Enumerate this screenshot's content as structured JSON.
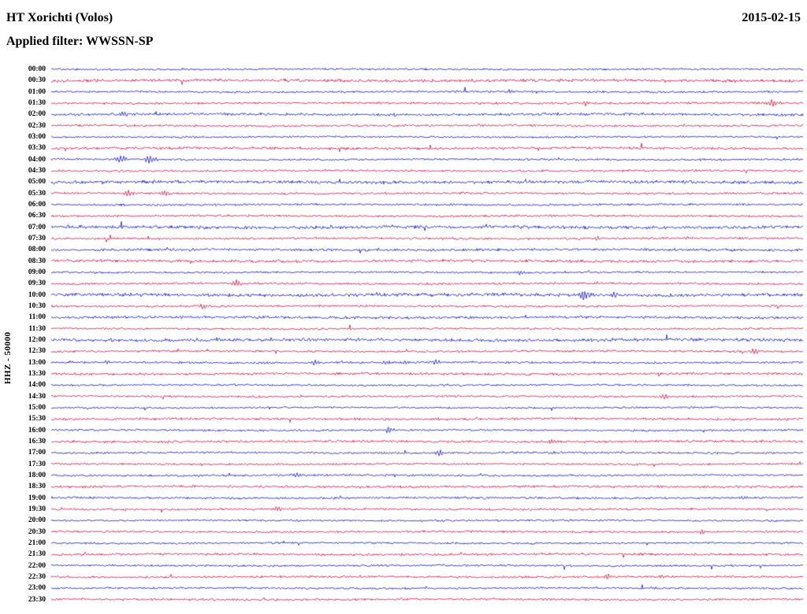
{
  "header": {
    "title": "HT Xorichti (Volos)",
    "date": "2015-02-15",
    "filter": "Applied filter: WWSSN-SP"
  },
  "chart_data": {
    "type": "line",
    "subtype": "helicorder_day_plot",
    "title": "HT Xorichti (Volos)",
    "date": "2015-02-15",
    "filter": "WWSSN-SP",
    "ylabel": "HHZ - 50000",
    "channel": "HHZ",
    "amplitude_scale": 50000,
    "row_duration_minutes": 30,
    "rows_start": "00:00",
    "rows_end": "23:30",
    "grid": false,
    "legend": false,
    "trace_colors": {
      "blue": "#1515c8",
      "red": "#d31245"
    },
    "row_event_format": "[position_fraction_of_row, peak_amplitude_px, burst_width_px]",
    "rows": [
      {
        "time": "00:00",
        "color": "blue",
        "noise": 0.85,
        "events": []
      },
      {
        "time": "00:30",
        "color": "red",
        "noise": 1.35,
        "events": []
      },
      {
        "time": "01:00",
        "color": "blue",
        "noise": 0.9,
        "events": [
          [
            0.61,
            2.2,
            5
          ]
        ]
      },
      {
        "time": "01:30",
        "color": "red",
        "noise": 0.95,
        "events": [
          [
            0.71,
            2.4,
            6
          ],
          [
            0.958,
            4.0,
            8
          ]
        ]
      },
      {
        "time": "02:00",
        "color": "blue",
        "noise": 1.2,
        "events": [
          [
            0.095,
            3.2,
            7
          ],
          [
            0.455,
            1.8,
            5
          ]
        ]
      },
      {
        "time": "02:30",
        "color": "red",
        "noise": 0.95,
        "events": []
      },
      {
        "time": "03:00",
        "color": "blue",
        "noise": 0.85,
        "events": []
      },
      {
        "time": "03:30",
        "color": "red",
        "noise": 1.15,
        "events": []
      },
      {
        "time": "04:00",
        "color": "blue",
        "noise": 0.9,
        "events": [
          [
            0.092,
            4.6,
            9
          ],
          [
            0.13,
            4.2,
            9
          ]
        ]
      },
      {
        "time": "04:30",
        "color": "red",
        "noise": 0.9,
        "events": []
      },
      {
        "time": "05:00",
        "color": "blue",
        "noise": 1.4,
        "events": []
      },
      {
        "time": "05:30",
        "color": "red",
        "noise": 0.95,
        "events": [
          [
            0.1,
            3.4,
            8
          ],
          [
            0.15,
            2.8,
            7
          ]
        ]
      },
      {
        "time": "06:00",
        "color": "blue",
        "noise": 0.9,
        "events": [
          [
            0.53,
            2.0,
            6
          ]
        ]
      },
      {
        "time": "06:30",
        "color": "red",
        "noise": 0.95,
        "events": []
      },
      {
        "time": "07:00",
        "color": "blue",
        "noise": 1.4,
        "events": []
      },
      {
        "time": "07:30",
        "color": "red",
        "noise": 0.95,
        "events": [
          [
            0.725,
            2.8,
            6
          ],
          [
            0.845,
            2.4,
            6
          ]
        ]
      },
      {
        "time": "08:00",
        "color": "blue",
        "noise": 1.1,
        "events": []
      },
      {
        "time": "08:30",
        "color": "red",
        "noise": 1.25,
        "events": []
      },
      {
        "time": "09:00",
        "color": "blue",
        "noise": 0.9,
        "events": [
          [
            0.622,
            2.4,
            5
          ]
        ]
      },
      {
        "time": "09:30",
        "color": "red",
        "noise": 0.95,
        "events": [
          [
            0.245,
            3.8,
            8
          ]
        ]
      },
      {
        "time": "10:00",
        "color": "blue",
        "noise": 1.5,
        "events": [
          [
            0.21,
            2.4,
            5
          ],
          [
            0.435,
            2.4,
            5
          ],
          [
            0.708,
            6.2,
            7
          ],
          [
            0.748,
            3.0,
            6
          ]
        ]
      },
      {
        "time": "10:30",
        "color": "red",
        "noise": 0.95,
        "events": [
          [
            0.2,
            3.0,
            6
          ]
        ]
      },
      {
        "time": "11:00",
        "color": "blue",
        "noise": 1.15,
        "events": []
      },
      {
        "time": "11:30",
        "color": "red",
        "noise": 0.9,
        "events": []
      },
      {
        "time": "12:00",
        "color": "blue",
        "noise": 1.4,
        "events": []
      },
      {
        "time": "12:30",
        "color": "red",
        "noise": 0.95,
        "events": [
          [
            0.935,
            3.4,
            7
          ]
        ]
      },
      {
        "time": "13:00",
        "color": "blue",
        "noise": 0.95,
        "events": [
          [
            0.073,
            2.2,
            5
          ],
          [
            0.35,
            3.2,
            7
          ],
          [
            0.445,
            1.8,
            5
          ],
          [
            0.47,
            1.8,
            5
          ],
          [
            0.512,
            3.2,
            7
          ]
        ]
      },
      {
        "time": "13:30",
        "color": "red",
        "noise": 1.1,
        "events": []
      },
      {
        "time": "14:00",
        "color": "blue",
        "noise": 0.85,
        "events": []
      },
      {
        "time": "14:30",
        "color": "red",
        "noise": 0.9,
        "events": [
          [
            0.33,
            1.8,
            5
          ],
          [
            0.815,
            3.2,
            7
          ]
        ]
      },
      {
        "time": "15:00",
        "color": "blue",
        "noise": 0.85,
        "events": []
      },
      {
        "time": "15:30",
        "color": "red",
        "noise": 1.05,
        "events": []
      },
      {
        "time": "16:00",
        "color": "blue",
        "noise": 0.9,
        "events": [
          [
            0.448,
            3.4,
            7
          ]
        ]
      },
      {
        "time": "16:30",
        "color": "red",
        "noise": 1.1,
        "events": [
          [
            0.665,
            2.6,
            7
          ]
        ]
      },
      {
        "time": "17:00",
        "color": "blue",
        "noise": 0.9,
        "events": [
          [
            0.515,
            3.4,
            7
          ]
        ]
      },
      {
        "time": "17:30",
        "color": "red",
        "noise": 0.9,
        "events": []
      },
      {
        "time": "18:00",
        "color": "blue",
        "noise": 0.9,
        "events": [
          [
            0.325,
            3.0,
            7
          ]
        ]
      },
      {
        "time": "18:30",
        "color": "red",
        "noise": 1.1,
        "events": []
      },
      {
        "time": "19:00",
        "color": "blue",
        "noise": 0.9,
        "events": [
          [
            0.92,
            2.0,
            5
          ]
        ]
      },
      {
        "time": "19:30",
        "color": "red",
        "noise": 0.95,
        "events": [
          [
            0.3,
            3.0,
            7
          ]
        ]
      },
      {
        "time": "20:00",
        "color": "blue",
        "noise": 0.85,
        "events": []
      },
      {
        "time": "20:30",
        "color": "red",
        "noise": 0.9,
        "events": [
          [
            0.865,
            3.2,
            6
          ]
        ]
      },
      {
        "time": "21:00",
        "color": "blue",
        "noise": 0.85,
        "events": []
      },
      {
        "time": "21:30",
        "color": "red",
        "noise": 1.05,
        "events": []
      },
      {
        "time": "22:00",
        "color": "blue",
        "noise": 0.9,
        "events": []
      },
      {
        "time": "22:30",
        "color": "red",
        "noise": 0.95,
        "events": [
          [
            0.74,
            2.8,
            6
          ],
          [
            0.81,
            2.4,
            6
          ]
        ]
      },
      {
        "time": "23:00",
        "color": "blue",
        "noise": 0.85,
        "events": []
      },
      {
        "time": "23:30",
        "color": "red",
        "noise": 0.95,
        "events": []
      }
    ]
  }
}
